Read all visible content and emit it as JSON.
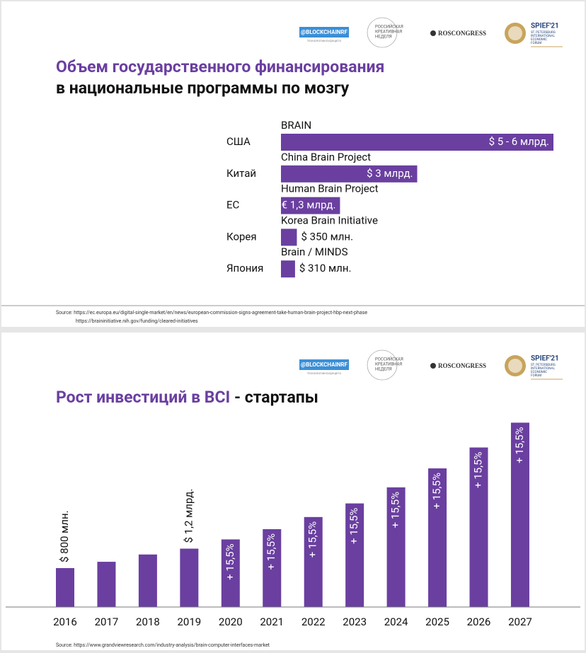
{
  "header": {
    "blockchain": "@BLOCKCHAINRF",
    "blockchain_sub": "ТЕХНОЛОГИИ БУДУЩЕГО",
    "creative_week": [
      "РОССИЙСКАЯ",
      "КРЕАТИВНАЯ",
      "НЕДЕЛЯ"
    ],
    "roscongress": "ROSCONGRESS",
    "spief": "SPIEF'21",
    "spief_sub": [
      "ST. PETERSBURG",
      "INTERNATIONAL",
      "ECONOMIC",
      "FORUM"
    ]
  },
  "chart_data": [
    {
      "type": "bar",
      "orientation": "horizontal",
      "title": "Объем государственного финансирования",
      "subtitle": "в национальные программы по мозгу",
      "categories": [
        "США",
        "Китай",
        "ЕС",
        "Корея",
        "Япония"
      ],
      "programs": [
        "BRAIN",
        "China Brain Project",
        "Human Brain Project",
        "Korea Brain Initiative",
        "Brain / MINDS"
      ],
      "values": [
        6,
        3,
        1.3,
        0.35,
        0.31
      ],
      "value_labels": [
        "$ 5 - 6 млрд.",
        "$ 3 млрд.",
        "€ 1,3 млрд.",
        "$ 350 млн.",
        "$ 310 млн."
      ],
      "xlim": [
        0,
        6
      ],
      "color": "#6a3fa0",
      "source": [
        "Source: https://ec.europa.eu/digital-single-market/en/news/european-commission-signs-agreement-take-human-brain-project-hbp-next-phase",
        "https://braininitiative.nih.gov/funding/cleared-initiatives"
      ]
    },
    {
      "type": "bar",
      "orientation": "vertical",
      "title": "Рост инвестиций  в BCI",
      "title_suffix": " - стартапы",
      "categories": [
        "2016",
        "2017",
        "2018",
        "2019",
        "2020",
        "2021",
        "2022",
        "2023",
        "2024",
        "2025",
        "2026",
        "2027"
      ],
      "values": [
        0.8,
        0.93,
        1.08,
        1.2,
        1.39,
        1.6,
        1.85,
        2.13,
        2.46,
        2.85,
        3.28,
        3.79
      ],
      "value_labels": [
        "$ 800 млн.",
        null,
        null,
        "$ 1,2 млрд.",
        null,
        null,
        null,
        null,
        null,
        null,
        null,
        null
      ],
      "growth_labels": [
        null,
        null,
        null,
        null,
        "+ 15,5%",
        "+ 15,5%",
        "+ 15,5%",
        "+ 15,5%",
        "+ 15,5%",
        "+ 15,5%",
        "+ 15,5%",
        "+ 15,5%"
      ],
      "ylim": [
        0,
        4
      ],
      "color": "#6a3fa0",
      "source": [
        "Source: https://www.grandviewresearch.com/industry-analysis/brain-computer-interfaces-market"
      ]
    }
  ]
}
